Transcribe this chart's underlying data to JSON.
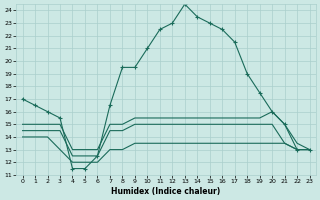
{
  "xlabel": "Humidex (Indice chaleur)",
  "xlim": [
    -0.5,
    23.5
  ],
  "ylim": [
    11,
    24.5
  ],
  "yticks": [
    11,
    12,
    13,
    14,
    15,
    16,
    17,
    18,
    19,
    20,
    21,
    22,
    23,
    24
  ],
  "xticks": [
    0,
    1,
    2,
    3,
    4,
    5,
    6,
    7,
    8,
    9,
    10,
    11,
    12,
    13,
    14,
    15,
    16,
    17,
    18,
    19,
    20,
    21,
    22,
    23
  ],
  "line_color": "#1a6b5a",
  "bg_color": "#cce8e4",
  "grid_color": "#aacfcc",
  "line1_y": [
    17.0,
    16.5,
    16.0,
    15.5,
    11.5,
    11.5,
    12.5,
    16.5,
    19.5,
    19.5,
    21.0,
    22.5,
    23.0,
    24.5,
    23.5,
    23.0,
    22.5,
    21.5,
    19.0,
    17.5,
    16.0,
    15.0,
    13.0,
    13.0
  ],
  "line2_y": [
    15.0,
    15.0,
    15.0,
    15.0,
    13.0,
    13.0,
    13.0,
    15.0,
    15.0,
    15.5,
    15.5,
    15.5,
    15.5,
    15.5,
    15.5,
    15.5,
    15.5,
    15.5,
    15.5,
    15.5,
    16.0,
    15.0,
    13.5,
    13.0
  ],
  "line3_y": [
    14.5,
    14.5,
    14.5,
    14.5,
    12.5,
    12.5,
    12.5,
    14.5,
    14.5,
    15.0,
    15.0,
    15.0,
    15.0,
    15.0,
    15.0,
    15.0,
    15.0,
    15.0,
    15.0,
    15.0,
    15.0,
    13.5,
    13.0,
    13.0
  ],
  "line4_y": [
    14.0,
    14.0,
    14.0,
    13.0,
    12.0,
    12.0,
    12.0,
    13.0,
    13.0,
    13.5,
    13.5,
    13.5,
    13.5,
    13.5,
    13.5,
    13.5,
    13.5,
    13.5,
    13.5,
    13.5,
    13.5,
    13.5,
    13.0,
    13.0
  ]
}
